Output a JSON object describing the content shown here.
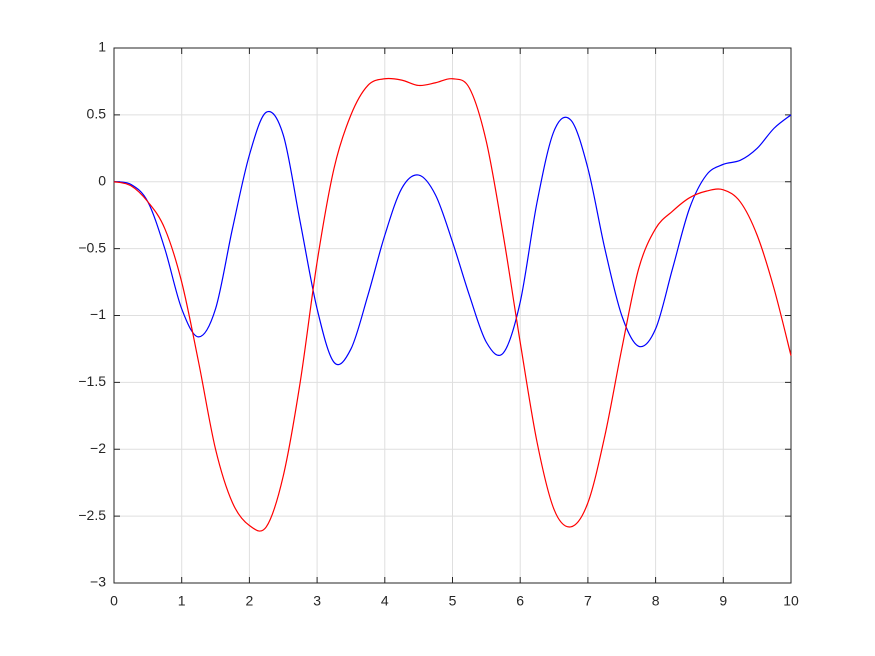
{
  "chart_data": {
    "type": "line",
    "x": [
      0,
      0.25,
      0.5,
      0.75,
      1,
      1.25,
      1.5,
      1.75,
      2,
      2.25,
      2.5,
      2.75,
      3,
      3.25,
      3.5,
      3.75,
      4,
      4.25,
      4.5,
      4.75,
      5,
      5.25,
      5.5,
      5.75,
      6,
      6.25,
      6.5,
      6.75,
      7,
      7.25,
      7.5,
      7.75,
      8,
      8.25,
      8.5,
      8.75,
      9,
      9.25,
      9.5,
      9.75,
      10
    ],
    "series": [
      {
        "color": "#0000ff",
        "values": [
          0,
          -0.02,
          -0.15,
          -0.5,
          -0.95,
          -1.16,
          -0.95,
          -0.35,
          0.2,
          0.52,
          0.35,
          -0.3,
          -0.95,
          -1.35,
          -1.25,
          -0.85,
          -0.4,
          -0.05,
          0.05,
          -0.1,
          -0.45,
          -0.85,
          -1.2,
          -1.28,
          -0.9,
          -0.15,
          0.38,
          0.46,
          0.1,
          -0.5,
          -1.0,
          -1.23,
          -1.1,
          -0.65,
          -0.2,
          0.05,
          0.13,
          0.16,
          0.25,
          0.4,
          0.5
        ]
      },
      {
        "color": "#ff0000",
        "values": [
          0,
          -0.03,
          -0.15,
          -0.35,
          -0.75,
          -1.35,
          -2.0,
          -2.4,
          -2.57,
          -2.58,
          -2.2,
          -1.5,
          -0.6,
          0.1,
          0.5,
          0.72,
          0.77,
          0.76,
          0.72,
          0.74,
          0.77,
          0.7,
          0.3,
          -0.4,
          -1.2,
          -1.95,
          -2.45,
          -2.58,
          -2.4,
          -1.9,
          -1.25,
          -0.65,
          -0.35,
          -0.22,
          -0.12,
          -0.07,
          -0.06,
          -0.15,
          -0.4,
          -0.8,
          -1.3
        ]
      }
    ],
    "xlim": [
      0,
      10
    ],
    "xticks": [
      0,
      1,
      2,
      3,
      4,
      5,
      6,
      7,
      8,
      9,
      10
    ],
    "ylim": [
      -3,
      1
    ],
    "yticks": [
      {
        "value": -3,
        "label": "−3"
      },
      {
        "value": -2.5,
        "label": "−2.5"
      },
      {
        "value": -2,
        "label": "−2"
      },
      {
        "value": -1.5,
        "label": "−1.5"
      },
      {
        "value": -1,
        "label": "−1"
      },
      {
        "value": -0.5,
        "label": "−0.5"
      },
      0,
      0.5,
      1
    ],
    "grid": true
  }
}
